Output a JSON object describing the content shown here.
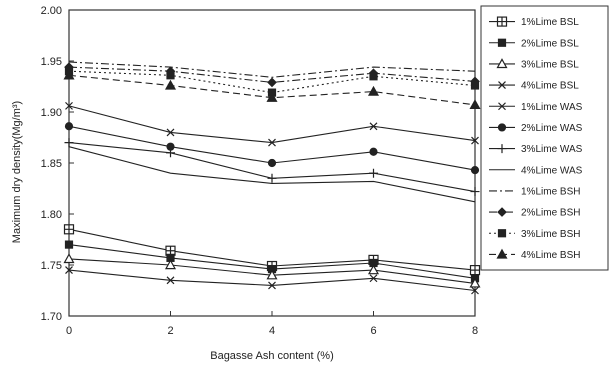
{
  "chart_data": {
    "type": "line",
    "title": "",
    "xlabel": "Bagasse Ash content (%)",
    "ylabel": "Maximum dry density(Mg/m³)",
    "xlim": [
      0,
      8
    ],
    "ylim": [
      1.7,
      2.0
    ],
    "x_ticks": [
      "0",
      "2",
      "4",
      "6",
      "8"
    ],
    "y_ticks": [
      "1.70",
      "1.75",
      "1.80",
      "1.85",
      "1.90",
      "1.95",
      "2.00"
    ],
    "grid": false,
    "legend_position": "right",
    "x": [
      0,
      2,
      4,
      6,
      8
    ],
    "series": [
      {
        "name": "1%Lime BSL",
        "values": [
          1.785,
          1.764,
          1.749,
          1.755,
          1.745
        ],
        "marker": "square-plus",
        "dash": "solid"
      },
      {
        "name": "2%Lime BSL",
        "values": [
          1.77,
          1.757,
          1.746,
          1.752,
          1.737
        ],
        "marker": "square",
        "dash": "solid"
      },
      {
        "name": "3%Lime BSL",
        "values": [
          1.756,
          1.75,
          1.74,
          1.745,
          1.732
        ],
        "marker": "triangle-open",
        "dash": "solid"
      },
      {
        "name": "4%Lime BSL",
        "values": [
          1.745,
          1.735,
          1.73,
          1.737,
          1.725
        ],
        "marker": "x",
        "dash": "solid"
      },
      {
        "name": "1%Lime WAS",
        "values": [
          1.906,
          1.88,
          1.87,
          1.886,
          1.872
        ],
        "marker": "x",
        "dash": "solid"
      },
      {
        "name": "2%Lime WAS",
        "values": [
          1.886,
          1.866,
          1.85,
          1.861,
          1.843
        ],
        "marker": "circle",
        "dash": "solid"
      },
      {
        "name": "3%Lime WAS",
        "values": [
          1.87,
          1.86,
          1.835,
          1.84,
          1.822
        ],
        "marker": "plus",
        "dash": "solid"
      },
      {
        "name": "4%Lime WAS",
        "values": [
          1.866,
          1.84,
          1.83,
          1.832,
          1.812
        ],
        "marker": "none",
        "dash": "solid"
      },
      {
        "name": "1%Lime BSH",
        "values": [
          1.949,
          1.944,
          1.934,
          1.944,
          1.94
        ],
        "marker": "none",
        "dash": "dashdot"
      },
      {
        "name": "2%Lime BSH",
        "values": [
          1.944,
          1.94,
          1.929,
          1.938,
          1.93
        ],
        "marker": "diamond",
        "dash": "dashdot"
      },
      {
        "name": "3%Lime BSH",
        "values": [
          1.94,
          1.936,
          1.919,
          1.935,
          1.926
        ],
        "marker": "square",
        "dash": "dotted"
      },
      {
        "name": "4%Lime BSH",
        "values": [
          1.936,
          1.926,
          1.914,
          1.92,
          1.907
        ],
        "marker": "triangle",
        "dash": "dashed"
      }
    ]
  }
}
